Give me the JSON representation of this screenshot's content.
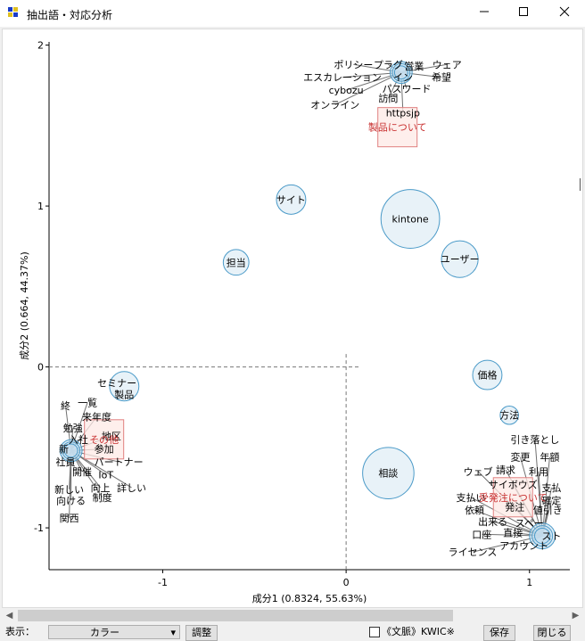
{
  "window": {
    "title": "抽出語・対応分析"
  },
  "titlebar_icons": {
    "minimize": "minimize-icon",
    "maximize": "maximize-icon",
    "close": "close-icon"
  },
  "colors": {
    "bubble_stroke": "#4a9ac8",
    "bubble_fill": "#e8f2f8",
    "category_stroke": "#e08080",
    "category_fill": "#fdeae6",
    "category_text": "#c83030",
    "line": "#707070"
  },
  "toolbar": {
    "display_label": "表示：",
    "display_value": "カラー",
    "adjust_label": "調整",
    "kwic_label": "《文脈》KWIC※",
    "save_label": "保存",
    "close_label": "閉じる"
  },
  "chart_data": {
    "type": "scatter",
    "xlabel": "成分1 (0.8324, 55.63%)",
    "ylabel": "成分2 (0.664, 44.37%)",
    "xlim": [
      -1.62,
      1.22
    ],
    "ylim": [
      -1.26,
      2.02
    ],
    "xticks": [
      -1,
      0,
      1
    ],
    "yticks": [
      -1,
      0,
      1,
      2
    ],
    "reference_lines": {
      "x": 0,
      "y": 0,
      "style": "dashed"
    },
    "categories": [
      {
        "label": "製品について",
        "x": 0.28,
        "y": 1.49
      },
      {
        "label": "その他",
        "x": -1.32,
        "y": -0.45
      },
      {
        "label": "受発注について",
        "x": 0.91,
        "y": -0.81
      }
    ],
    "clusters": [
      {
        "cx": 0.3,
        "cy": 1.83,
        "r": 0.06,
        "words": [
          {
            "label": "ポリシー",
            "x": 0.04,
            "y": 1.88
          },
          {
            "label": "プラグ",
            "x": 0.23,
            "y": 1.88
          },
          {
            "label": "営業",
            "x": 0.37,
            "y": 1.87
          },
          {
            "label": "ウェア",
            "x": 0.55,
            "y": 1.88
          },
          {
            "label": "エスカレーション",
            "x": -0.02,
            "y": 1.8
          },
          {
            "label": "イン",
            "x": 0.31,
            "y": 1.8
          },
          {
            "label": "希望",
            "x": 0.52,
            "y": 1.8
          },
          {
            "label": "cybozu",
            "x": 0.0,
            "y": 1.72
          },
          {
            "label": "パスワード",
            "x": 0.33,
            "y": 1.73
          },
          {
            "label": "訪問",
            "x": 0.23,
            "y": 1.67
          },
          {
            "label": "オンライン",
            "x": -0.06,
            "y": 1.63
          },
          {
            "label": "httpsjp",
            "x": 0.31,
            "y": 1.58
          }
        ]
      },
      {
        "cx": -1.5,
        "cy": -0.52,
        "r": 0.06,
        "words": [
          {
            "label": "終",
            "x": -1.53,
            "y": -0.24
          },
          {
            "label": "一覧",
            "x": -1.41,
            "y": -0.22
          },
          {
            "label": "来年度",
            "x": -1.36,
            "y": -0.31
          },
          {
            "label": "勉強",
            "x": -1.49,
            "y": -0.38
          },
          {
            "label": "入社",
            "x": -1.46,
            "y": -0.45
          },
          {
            "label": "地区",
            "x": -1.28,
            "y": -0.43
          },
          {
            "label": "新",
            "x": -1.54,
            "y": -0.51
          },
          {
            "label": "参加",
            "x": -1.32,
            "y": -0.51
          },
          {
            "label": "社員",
            "x": -1.53,
            "y": -0.59
          },
          {
            "label": "パートナー",
            "x": -1.24,
            "y": -0.59
          },
          {
            "label": "開催",
            "x": -1.44,
            "y": -0.65
          },
          {
            "label": "IoT",
            "x": -1.31,
            "y": -0.67
          },
          {
            "label": "新しい",
            "x": -1.51,
            "y": -0.76
          },
          {
            "label": "向上",
            "x": -1.34,
            "y": -0.75
          },
          {
            "label": "詳しい",
            "x": -1.17,
            "y": -0.75
          },
          {
            "label": "向ける",
            "x": -1.5,
            "y": -0.83
          },
          {
            "label": "制度",
            "x": -1.33,
            "y": -0.81
          },
          {
            "label": "関西",
            "x": -1.51,
            "y": -0.94
          }
        ]
      },
      {
        "cx": 1.07,
        "cy": -1.05,
        "r": 0.07,
        "words": [
          {
            "label": "引き落とし",
            "x": 1.03,
            "y": -0.45
          },
          {
            "label": "年額",
            "x": 1.11,
            "y": -0.56
          },
          {
            "label": "変更",
            "x": 0.95,
            "y": -0.56
          },
          {
            "label": "請求",
            "x": 0.87,
            "y": -0.64
          },
          {
            "label": "利用",
            "x": 1.05,
            "y": -0.65
          },
          {
            "label": "ウェブ",
            "x": 0.72,
            "y": -0.65
          },
          {
            "label": "サイボウズ",
            "x": 0.91,
            "y": -0.73
          },
          {
            "label": "支払",
            "x": 1.12,
            "y": -0.75
          },
          {
            "label": "支払い",
            "x": 0.68,
            "y": -0.81
          },
          {
            "label": "確定",
            "x": 1.12,
            "y": -0.83
          },
          {
            "label": "依頼",
            "x": 0.7,
            "y": -0.89
          },
          {
            "label": "発注",
            "x": 0.92,
            "y": -0.87
          },
          {
            "label": "値引き",
            "x": 1.1,
            "y": -0.89
          },
          {
            "label": "出来る",
            "x": 0.8,
            "y": -0.96
          },
          {
            "label": "スペー",
            "x": 1.0,
            "y": -0.97
          },
          {
            "label": "口座",
            "x": 0.74,
            "y": -1.04
          },
          {
            "label": "直接",
            "x": 0.91,
            "y": -1.03
          },
          {
            "label": "スト",
            "x": 1.12,
            "y": -1.05
          },
          {
            "label": "アカウント",
            "x": 0.97,
            "y": -1.11
          },
          {
            "label": "ライセンス",
            "x": 0.69,
            "y": -1.15
          }
        ]
      }
    ],
    "free_words": [
      {
        "label": "kintone",
        "x": 0.35,
        "y": 0.92,
        "r": 0.16
      },
      {
        "label": "サイト",
        "x": -0.3,
        "y": 1.04,
        "r": 0.08
      },
      {
        "label": "ユーザー",
        "x": 0.62,
        "y": 0.67,
        "r": 0.1
      },
      {
        "label": "担当",
        "x": -0.6,
        "y": 0.65,
        "r": 0.07
      },
      {
        "label": "セミナー",
        "x": -1.25,
        "y": -0.1,
        "r": 0.0
      },
      {
        "label": "製品",
        "x": -1.21,
        "y": -0.17,
        "r": 0.0
      },
      {
        "label": "価格",
        "x": 0.77,
        "y": -0.05,
        "r": 0.08
      },
      {
        "label": "方法",
        "x": 0.89,
        "y": -0.3,
        "r": 0.05
      },
      {
        "label": "相談",
        "x": 0.23,
        "y": -0.66,
        "r": 0.14
      }
    ],
    "extra_bubbles": [
      {
        "x": -1.21,
        "y": -0.12,
        "r": 0.08
      }
    ]
  }
}
